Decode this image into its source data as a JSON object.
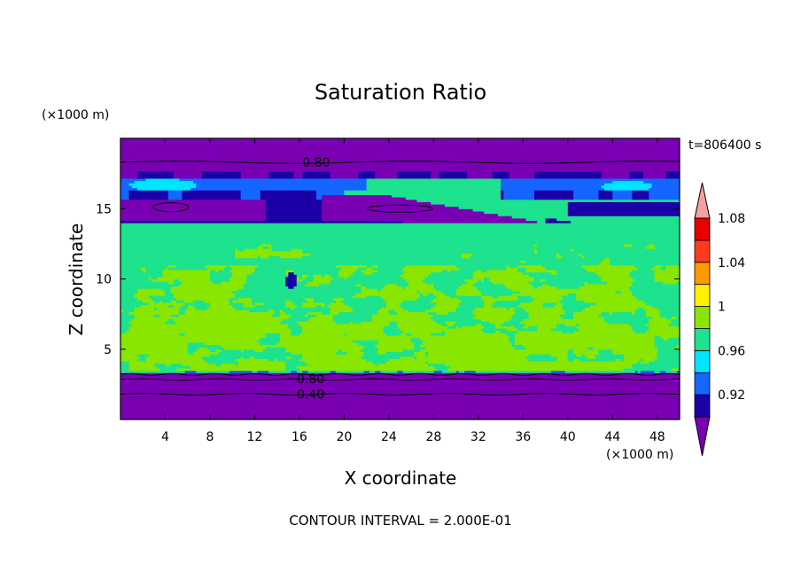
{
  "chart_data": {
    "type": "heatmap",
    "title": "Saturation Ratio",
    "xlabel": "X coordinate",
    "ylabel": "Z coordinate",
    "x_unit": "(×1000 m)",
    "y_unit": "(×1000 m)",
    "time_label": "t=806400 s",
    "footer": "CONTOUR INTERVAL = 2.000E-01",
    "xlim": [
      0,
      50
    ],
    "ylim": [
      0,
      20
    ],
    "x_ticks": [
      4,
      8,
      12,
      16,
      20,
      24,
      28,
      32,
      36,
      40,
      44,
      48
    ],
    "y_ticks": [
      5,
      10,
      15
    ],
    "contour_labels": [
      {
        "text": "0.80",
        "x": 17.5,
        "z": 18.3
      },
      {
        "text": "0.80",
        "x": 17.0,
        "z": 2.9
      },
      {
        "text": "0.40",
        "x": 17.0,
        "z": 1.8
      }
    ],
    "colorbar": {
      "levels": [
        0.92,
        0.96,
        1,
        1.04,
        1.08
      ],
      "level_labels": [
        "0.92",
        "0.96",
        "1",
        "1.04",
        "1.08"
      ],
      "bins": [
        {
          "color": "#7a00b4"
        },
        {
          "color": "#1b00a6"
        },
        {
          "color": "#1565ff"
        },
        {
          "color": "#00e5ff"
        },
        {
          "color": "#1de28e"
        },
        {
          "color": "#88e600"
        },
        {
          "color": "#ffef00"
        },
        {
          "color": "#ff9900"
        },
        {
          "color": "#ff3b1f"
        },
        {
          "color": "#e60000"
        },
        {
          "color": "#f5a0a0"
        }
      ]
    }
  }
}
